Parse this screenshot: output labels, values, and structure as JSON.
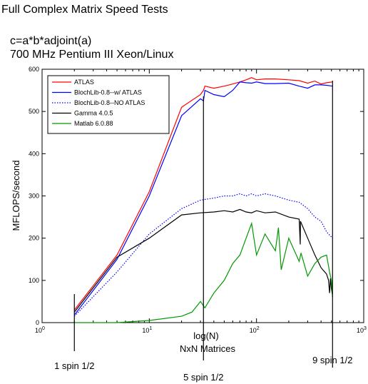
{
  "chart_data": {
    "type": "line",
    "title": "Full Complex Matrix Speed Tests",
    "subtitle_lines": [
      "c=a*b*adjoint(a)",
      "700 MHz Pentium III Xeon/Linux"
    ],
    "xlabel_lines": [
      "log(N)",
      "NxN Matrices"
    ],
    "ylabel": "MFLOPS/second",
    "x_scale": "log",
    "xlim": [
      1,
      1000
    ],
    "ylim": [
      0,
      600
    ],
    "x_ticks": [
      {
        "value": 1,
        "base": "10",
        "exp": "0"
      },
      {
        "value": 10,
        "base": "10",
        "exp": "1"
      },
      {
        "value": 100,
        "base": "10",
        "exp": "2"
      },
      {
        "value": 1000,
        "base": "10",
        "exp": "3"
      }
    ],
    "y_ticks": [
      0,
      100,
      200,
      300,
      400,
      500,
      600
    ],
    "grid": false,
    "legend_position": "top-left",
    "series": [
      {
        "name": "ATLAS",
        "color": "#ff0000",
        "dash": "solid",
        "points": [
          [
            2,
            30
          ],
          [
            5,
            160
          ],
          [
            10,
            310
          ],
          [
            20,
            510
          ],
          [
            30,
            540
          ],
          [
            32,
            550
          ],
          [
            33,
            560
          ],
          [
            40,
            555
          ],
          [
            50,
            560
          ],
          [
            60,
            565
          ],
          [
            70,
            570
          ],
          [
            80,
            575
          ],
          [
            90,
            580
          ],
          [
            100,
            575
          ],
          [
            120,
            577
          ],
          [
            150,
            577
          ],
          [
            200,
            575
          ],
          [
            250,
            573
          ],
          [
            300,
            567
          ],
          [
            350,
            572
          ],
          [
            400,
            565
          ],
          [
            450,
            568
          ],
          [
            512,
            570
          ]
        ]
      },
      {
        "name": "BlochLib-0.8--w/ ATLAS",
        "color": "#0000ff",
        "dash": "solid",
        "points": [
          [
            2,
            18
          ],
          [
            5,
            150
          ],
          [
            10,
            300
          ],
          [
            20,
            490
          ],
          [
            30,
            530
          ],
          [
            32,
            525
          ],
          [
            33,
            550
          ],
          [
            40,
            540
          ],
          [
            50,
            535
          ],
          [
            60,
            550
          ],
          [
            70,
            570
          ],
          [
            80,
            568
          ],
          [
            90,
            567
          ],
          [
            100,
            570
          ],
          [
            120,
            566
          ],
          [
            150,
            566
          ],
          [
            200,
            567
          ],
          [
            250,
            560
          ],
          [
            300,
            555
          ],
          [
            350,
            563
          ],
          [
            400,
            563
          ],
          [
            450,
            562
          ],
          [
            512,
            560
          ]
        ]
      },
      {
        "name": "BlochLib-0.8--NO ATLAS",
        "color": "#0000ff",
        "dash": "dotted",
        "points": [
          [
            2,
            15
          ],
          [
            5,
            120
          ],
          [
            10,
            210
          ],
          [
            20,
            270
          ],
          [
            30,
            290
          ],
          [
            40,
            295
          ],
          [
            50,
            300
          ],
          [
            60,
            300
          ],
          [
            70,
            305
          ],
          [
            80,
            300
          ],
          [
            90,
            305
          ],
          [
            100,
            300
          ],
          [
            120,
            305
          ],
          [
            150,
            300
          ],
          [
            200,
            290
          ],
          [
            250,
            285
          ],
          [
            300,
            270
          ],
          [
            350,
            250
          ],
          [
            400,
            240
          ],
          [
            450,
            215
          ],
          [
            512,
            200
          ]
        ]
      },
      {
        "name": "Gamma 4.0.5",
        "color": "#000000",
        "dash": "solid",
        "points": [
          [
            2,
            25
          ],
          [
            5,
            155
          ],
          [
            10,
            200
          ],
          [
            20,
            255
          ],
          [
            30,
            260
          ],
          [
            40,
            262
          ],
          [
            50,
            265
          ],
          [
            60,
            262
          ],
          [
            70,
            268
          ],
          [
            80,
            262
          ],
          [
            90,
            260
          ],
          [
            100,
            265
          ],
          [
            120,
            260
          ],
          [
            150,
            262
          ],
          [
            200,
            250
          ],
          [
            250,
            245
          ],
          [
            256,
            185
          ],
          [
            257,
            240
          ],
          [
            300,
            200
          ],
          [
            350,
            160
          ],
          [
            400,
            130
          ],
          [
            450,
            115
          ],
          [
            470,
            100
          ],
          [
            480,
            70
          ],
          [
            490,
            105
          ],
          [
            500,
            80
          ],
          [
            512,
            65
          ]
        ]
      },
      {
        "name": "Matlab 6.0.88",
        "color": "#009900",
        "dash": "solid",
        "points": [
          [
            2,
            0
          ],
          [
            5,
            0
          ],
          [
            10,
            5
          ],
          [
            20,
            15
          ],
          [
            25,
            25
          ],
          [
            30,
            50
          ],
          [
            33,
            35
          ],
          [
            40,
            70
          ],
          [
            50,
            100
          ],
          [
            60,
            140
          ],
          [
            70,
            160
          ],
          [
            80,
            200
          ],
          [
            90,
            235
          ],
          [
            100,
            160
          ],
          [
            120,
            210
          ],
          [
            150,
            170
          ],
          [
            160,
            225
          ],
          [
            170,
            125
          ],
          [
            200,
            200
          ],
          [
            250,
            145
          ],
          [
            260,
            165
          ],
          [
            300,
            110
          ],
          [
            350,
            140
          ],
          [
            400,
            155
          ],
          [
            450,
            160
          ],
          [
            480,
            120
          ],
          [
            500,
            100
          ],
          [
            512,
            60
          ]
        ]
      }
    ],
    "markers": [
      {
        "x": 2,
        "label": "1 spin 1/2"
      },
      {
        "x": 32,
        "label": "5 spin 1/2"
      },
      {
        "x": 512,
        "label": "9 spin 1/2"
      }
    ]
  }
}
